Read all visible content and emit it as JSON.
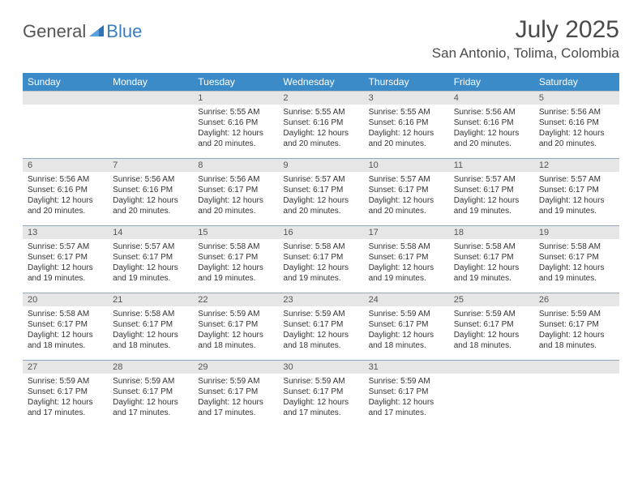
{
  "brand": {
    "part1": "General",
    "part2": "Blue"
  },
  "title": "July 2025",
  "location": "San Antonio, Tolima, Colombia",
  "colors": {
    "header_bg": "#3b8bc9",
    "header_text": "#ffffff",
    "daynum_bg": "#e6e6e6",
    "daynum_text": "#555555",
    "body_text": "#333333",
    "rule": "#bfbfbf",
    "brand_blue": "#3b7fbf"
  },
  "day_headers": [
    "Sunday",
    "Monday",
    "Tuesday",
    "Wednesday",
    "Thursday",
    "Friday",
    "Saturday"
  ],
  "weeks": [
    [
      {
        "n": "",
        "sr": "",
        "ss": "",
        "dl": ""
      },
      {
        "n": "",
        "sr": "",
        "ss": "",
        "dl": ""
      },
      {
        "n": "1",
        "sr": "Sunrise: 5:55 AM",
        "ss": "Sunset: 6:16 PM",
        "dl": "Daylight: 12 hours and 20 minutes."
      },
      {
        "n": "2",
        "sr": "Sunrise: 5:55 AM",
        "ss": "Sunset: 6:16 PM",
        "dl": "Daylight: 12 hours and 20 minutes."
      },
      {
        "n": "3",
        "sr": "Sunrise: 5:55 AM",
        "ss": "Sunset: 6:16 PM",
        "dl": "Daylight: 12 hours and 20 minutes."
      },
      {
        "n": "4",
        "sr": "Sunrise: 5:56 AM",
        "ss": "Sunset: 6:16 PM",
        "dl": "Daylight: 12 hours and 20 minutes."
      },
      {
        "n": "5",
        "sr": "Sunrise: 5:56 AM",
        "ss": "Sunset: 6:16 PM",
        "dl": "Daylight: 12 hours and 20 minutes."
      }
    ],
    [
      {
        "n": "6",
        "sr": "Sunrise: 5:56 AM",
        "ss": "Sunset: 6:16 PM",
        "dl": "Daylight: 12 hours and 20 minutes."
      },
      {
        "n": "7",
        "sr": "Sunrise: 5:56 AM",
        "ss": "Sunset: 6:16 PM",
        "dl": "Daylight: 12 hours and 20 minutes."
      },
      {
        "n": "8",
        "sr": "Sunrise: 5:56 AM",
        "ss": "Sunset: 6:17 PM",
        "dl": "Daylight: 12 hours and 20 minutes."
      },
      {
        "n": "9",
        "sr": "Sunrise: 5:57 AM",
        "ss": "Sunset: 6:17 PM",
        "dl": "Daylight: 12 hours and 20 minutes."
      },
      {
        "n": "10",
        "sr": "Sunrise: 5:57 AM",
        "ss": "Sunset: 6:17 PM",
        "dl": "Daylight: 12 hours and 20 minutes."
      },
      {
        "n": "11",
        "sr": "Sunrise: 5:57 AM",
        "ss": "Sunset: 6:17 PM",
        "dl": "Daylight: 12 hours and 19 minutes."
      },
      {
        "n": "12",
        "sr": "Sunrise: 5:57 AM",
        "ss": "Sunset: 6:17 PM",
        "dl": "Daylight: 12 hours and 19 minutes."
      }
    ],
    [
      {
        "n": "13",
        "sr": "Sunrise: 5:57 AM",
        "ss": "Sunset: 6:17 PM",
        "dl": "Daylight: 12 hours and 19 minutes."
      },
      {
        "n": "14",
        "sr": "Sunrise: 5:57 AM",
        "ss": "Sunset: 6:17 PM",
        "dl": "Daylight: 12 hours and 19 minutes."
      },
      {
        "n": "15",
        "sr": "Sunrise: 5:58 AM",
        "ss": "Sunset: 6:17 PM",
        "dl": "Daylight: 12 hours and 19 minutes."
      },
      {
        "n": "16",
        "sr": "Sunrise: 5:58 AM",
        "ss": "Sunset: 6:17 PM",
        "dl": "Daylight: 12 hours and 19 minutes."
      },
      {
        "n": "17",
        "sr": "Sunrise: 5:58 AM",
        "ss": "Sunset: 6:17 PM",
        "dl": "Daylight: 12 hours and 19 minutes."
      },
      {
        "n": "18",
        "sr": "Sunrise: 5:58 AM",
        "ss": "Sunset: 6:17 PM",
        "dl": "Daylight: 12 hours and 19 minutes."
      },
      {
        "n": "19",
        "sr": "Sunrise: 5:58 AM",
        "ss": "Sunset: 6:17 PM",
        "dl": "Daylight: 12 hours and 19 minutes."
      }
    ],
    [
      {
        "n": "20",
        "sr": "Sunrise: 5:58 AM",
        "ss": "Sunset: 6:17 PM",
        "dl": "Daylight: 12 hours and 18 minutes."
      },
      {
        "n": "21",
        "sr": "Sunrise: 5:58 AM",
        "ss": "Sunset: 6:17 PM",
        "dl": "Daylight: 12 hours and 18 minutes."
      },
      {
        "n": "22",
        "sr": "Sunrise: 5:59 AM",
        "ss": "Sunset: 6:17 PM",
        "dl": "Daylight: 12 hours and 18 minutes."
      },
      {
        "n": "23",
        "sr": "Sunrise: 5:59 AM",
        "ss": "Sunset: 6:17 PM",
        "dl": "Daylight: 12 hours and 18 minutes."
      },
      {
        "n": "24",
        "sr": "Sunrise: 5:59 AM",
        "ss": "Sunset: 6:17 PM",
        "dl": "Daylight: 12 hours and 18 minutes."
      },
      {
        "n": "25",
        "sr": "Sunrise: 5:59 AM",
        "ss": "Sunset: 6:17 PM",
        "dl": "Daylight: 12 hours and 18 minutes."
      },
      {
        "n": "26",
        "sr": "Sunrise: 5:59 AM",
        "ss": "Sunset: 6:17 PM",
        "dl": "Daylight: 12 hours and 18 minutes."
      }
    ],
    [
      {
        "n": "27",
        "sr": "Sunrise: 5:59 AM",
        "ss": "Sunset: 6:17 PM",
        "dl": "Daylight: 12 hours and 17 minutes."
      },
      {
        "n": "28",
        "sr": "Sunrise: 5:59 AM",
        "ss": "Sunset: 6:17 PM",
        "dl": "Daylight: 12 hours and 17 minutes."
      },
      {
        "n": "29",
        "sr": "Sunrise: 5:59 AM",
        "ss": "Sunset: 6:17 PM",
        "dl": "Daylight: 12 hours and 17 minutes."
      },
      {
        "n": "30",
        "sr": "Sunrise: 5:59 AM",
        "ss": "Sunset: 6:17 PM",
        "dl": "Daylight: 12 hours and 17 minutes."
      },
      {
        "n": "31",
        "sr": "Sunrise: 5:59 AM",
        "ss": "Sunset: 6:17 PM",
        "dl": "Daylight: 12 hours and 17 minutes."
      },
      {
        "n": "",
        "sr": "",
        "ss": "",
        "dl": ""
      },
      {
        "n": "",
        "sr": "",
        "ss": "",
        "dl": ""
      }
    ]
  ]
}
